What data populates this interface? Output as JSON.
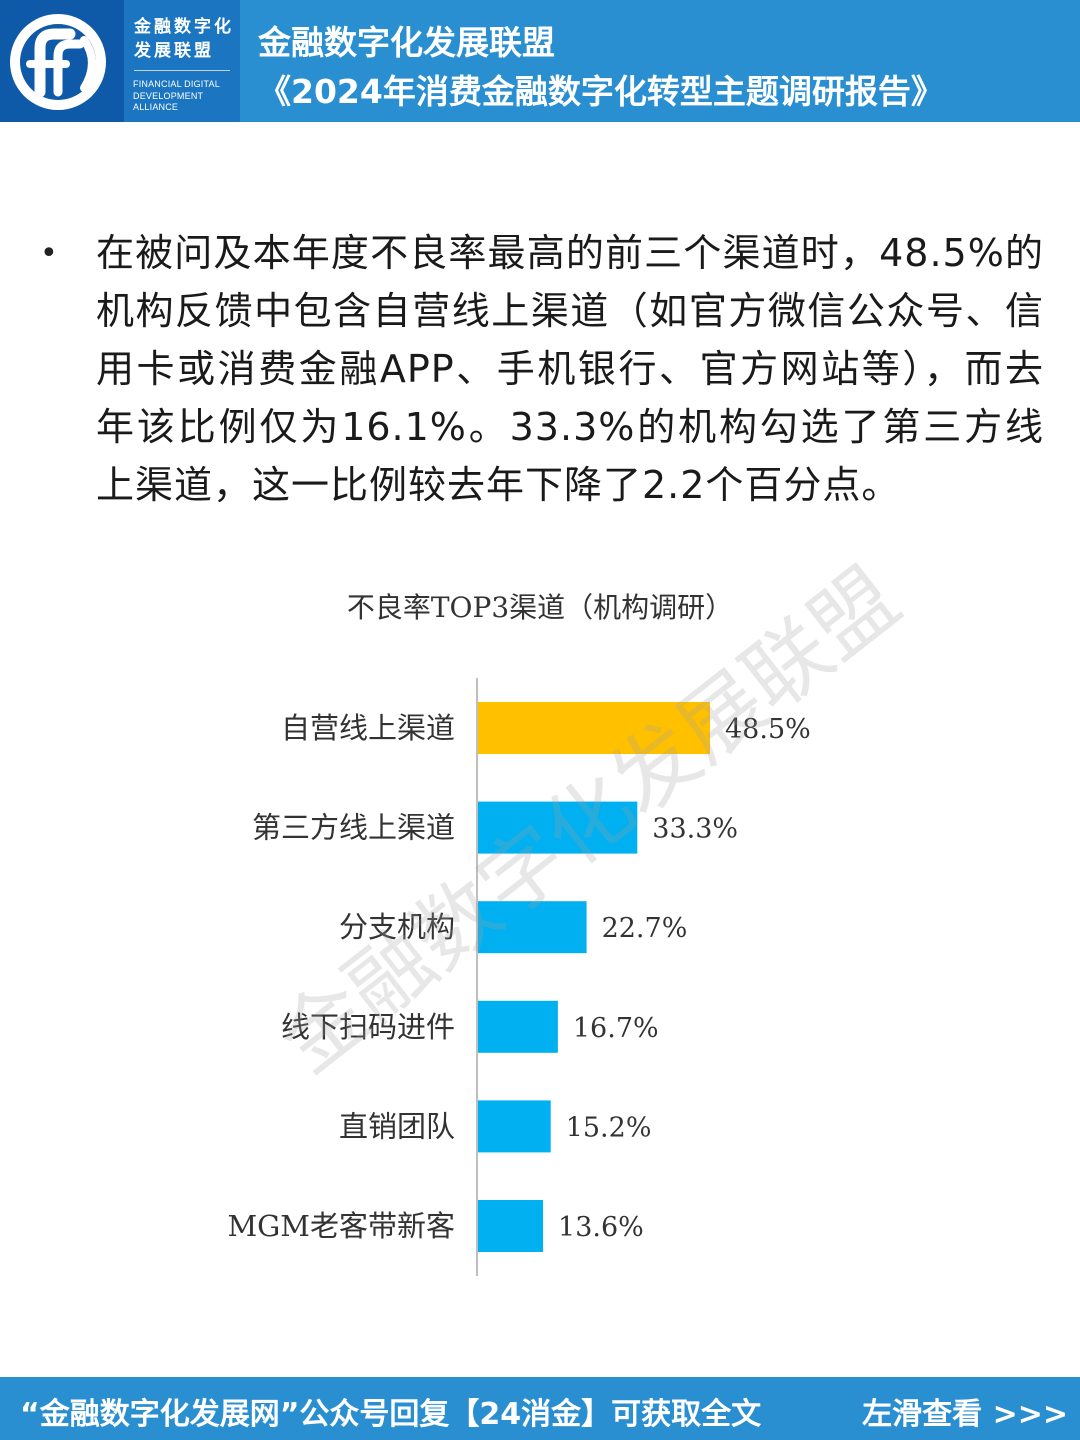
{
  "header": {
    "logo_cn_line1": "金融数字化",
    "logo_cn_line2": "发展联盟",
    "logo_en_line1": "FINANCIAL DIGITAL",
    "logo_en_line2": "DEVELOPMENT ALLIANCE",
    "title_line1": "金融数字化发展联盟",
    "title_line2": "《2024年消费金融数字化转型主题调研报告》"
  },
  "paragraph": {
    "bullet": "•",
    "text": "在被问及本年度不良率最高的前三个渠道时，48.5%的机构反馈中包含自营线上渠道（如官方微信公众号、信用卡或消费金融APP、手机银行、官方网站等），而去年该比例仅为16.1%。33.3%的机构勾选了第三方线上渠道，这一比例较去年下降了2.2个百分点。"
  },
  "chart_data": {
    "type": "bar",
    "orientation": "horizontal",
    "title": "不良率TOP3渠道（机构调研）",
    "categories": [
      "自营线上渠道",
      "第三方线上渠道",
      "分支机构",
      "线下扫码进件",
      "直销团队",
      "MGM老客带新客"
    ],
    "values": [
      48.5,
      33.3,
      22.7,
      16.7,
      15.2,
      13.6
    ],
    "value_labels": [
      "48.5%",
      "33.3%",
      "22.7%",
      "16.7%",
      "15.2%",
      "13.6%"
    ],
    "unit": "%",
    "colors": [
      "#FFC000",
      "#00B0F0",
      "#00B0F0",
      "#00B0F0",
      "#00B0F0",
      "#00B0F0"
    ],
    "axis_color": "#BFBFBF",
    "grid": false,
    "legend": "none"
  },
  "watermark": "金融数字化发展联盟",
  "footer": {
    "cta": "“金融数字化发展网”公众号回复【24消金】可获取全文",
    "swipe": "左滑查看 >>>"
  },
  "colors": {
    "header_bg": "#2A8FD0",
    "logo_bg": "#0F5AA8",
    "footer_bg": "#2A8FD0"
  }
}
